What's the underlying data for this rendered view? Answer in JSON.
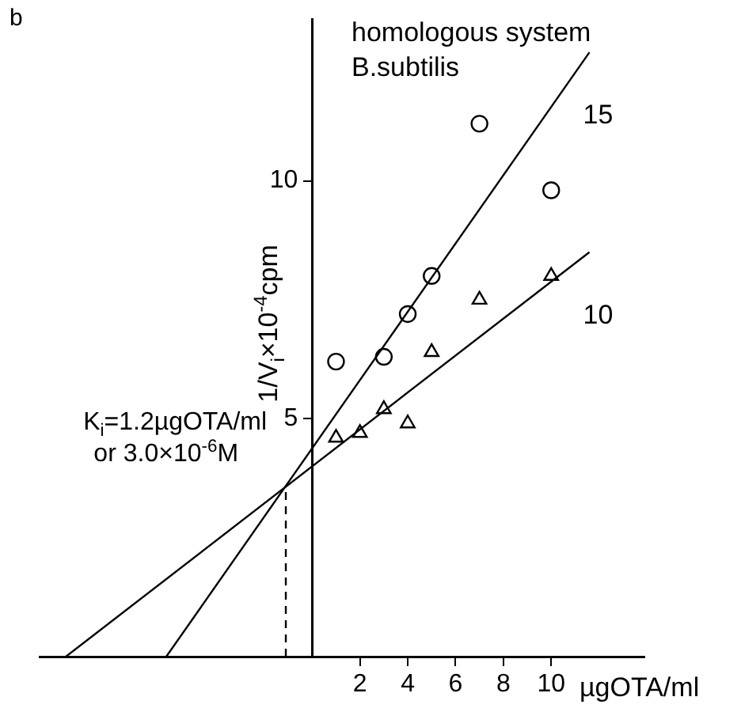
{
  "chart_data": {
    "type": "scatter",
    "title": "homologous system",
    "subtitle": "B.subtilis",
    "xlabel": "µgOTA/ml",
    "ylabel": "1/V$_{i}$×10$^{-4}$cpm",
    "annotations": [
      "b",
      {
        "text": "K$_{i}$=1.2µgOTA/ml or 3.0×10$^{-6}$M",
        "x": -1.1,
        "y": 3.5
      }
    ],
    "xlim": [
      -11.4,
      13.9
    ],
    "ylim": [
      0,
      13.4
    ],
    "xticks": [
      2,
      4,
      6,
      8,
      10
    ],
    "yticks": [
      5,
      10
    ],
    "grid": false,
    "legend": false,
    "series": [
      {
        "marker": "circle",
        "color": "#000000",
        "x": [
          1,
          3,
          4,
          5,
          7,
          10
        ],
        "values": [
          6.2,
          6.3,
          7.2,
          8.0,
          11.2,
          9.8
        ]
      },
      {
        "marker": "triangle",
        "color": "#000000",
        "x": [
          1,
          2,
          3,
          4,
          5,
          7,
          10
        ],
        "values": [
          4.6,
          4.7,
          5.2,
          4.9,
          6.4,
          7.5,
          8.0
        ]
      },
      {
        "type": "line",
        "name": "15",
        "color": "#000000",
        "marker": "none",
        "x": [
          -6.1,
          11.6
        ],
        "values": [
          0,
          12.7
        ]
      },
      {
        "type": "line",
        "name": "10",
        "color": "#000000",
        "marker": "none",
        "x": [
          -10.3,
          11.6
        ],
        "values": [
          0,
          8.5
        ]
      },
      {
        "type": "line",
        "color": "#000000",
        "marker": "none",
        "line_style": "dashed",
        "x": [
          -1.1,
          -1.1
        ],
        "values": [
          0,
          3.5
        ]
      }
    ]
  }
}
